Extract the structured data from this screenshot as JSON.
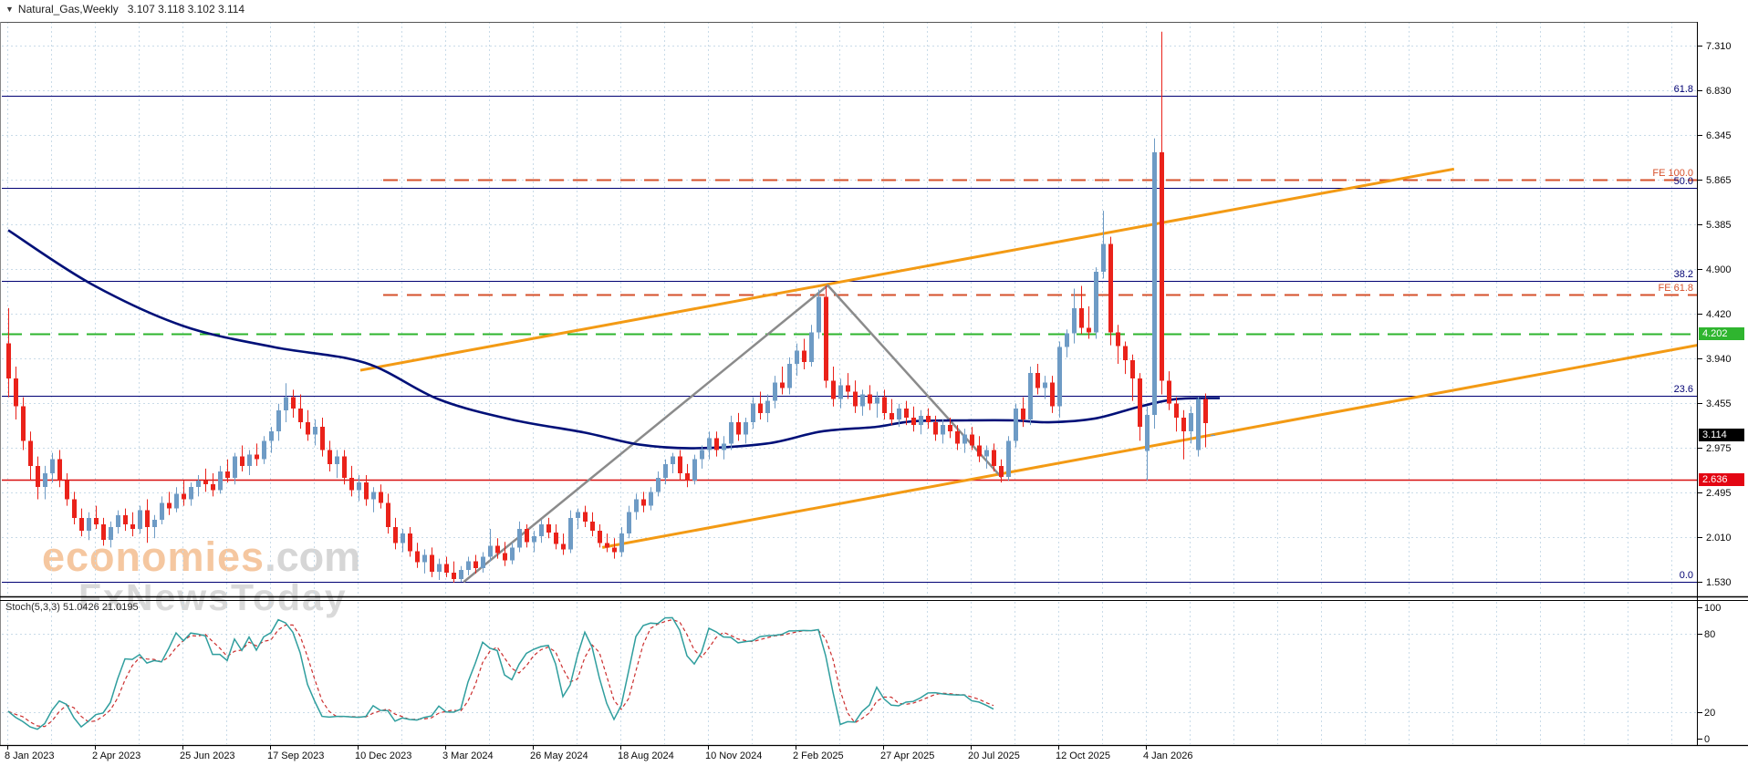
{
  "title": {
    "marker": "▼",
    "symbol": "Natural_Gas,Weekly",
    "ohlc": "3.107 3.118 3.102 3.114"
  },
  "watermark": {
    "brand": "economies",
    "brand_suffix": ".com",
    "subbrand": "FxNewsToday"
  },
  "indicator": {
    "label": "Stoch(5,3,3)",
    "values": "51.0426 21.0195"
  },
  "price_axis": {
    "ticks": [
      "7.310",
      "6.830",
      "6.345",
      "5.865",
      "5.385",
      "4.900",
      "4.420",
      "3.940",
      "3.455",
      "2.975",
      "2.495",
      "2.010",
      "1.530"
    ],
    "badges": [
      {
        "value": "4.202",
        "price": 4.202,
        "color": "#2fb52f"
      },
      {
        "value": "3.114",
        "price": 3.114,
        "color": "#000000"
      },
      {
        "value": "2.636",
        "price": 2.636,
        "color": "#e30613"
      }
    ]
  },
  "stoch_axis": {
    "ticks": [
      {
        "label": "100",
        "v": 100
      },
      {
        "label": "80",
        "v": 80
      },
      {
        "label": "20",
        "v": 20
      },
      {
        "label": "0",
        "v": 0
      }
    ]
  },
  "x_axis": {
    "dates": [
      "8 Jan 2023",
      "2 Apr 2023",
      "25 Jun 2023",
      "17 Sep 2023",
      "10 Dec 2023",
      "3 Mar 2024",
      "26 May 2024",
      "18 Aug 2024",
      "10 Nov 2024",
      "2 Feb 2025",
      "27 Apr 2025",
      "20 Jul 2025",
      "12 Oct 2025",
      "4 Jan 2026"
    ]
  },
  "colors": {
    "up": "#6e9bc5",
    "down": "#ea221a",
    "ma": "#001078",
    "trend": "#f39a14",
    "zigzag": "#8b8b8b",
    "fib": "#000073",
    "fib_expansion": "#d6502b",
    "green_line": "#2db52d",
    "red_line": "#d80f0f",
    "grid": "#c9dbe8",
    "stoch_k": "#2f9e9e",
    "stoch_d": "#cc2f2f",
    "axis_text": "#0a0a0a"
  },
  "chart_data": {
    "type": "candlestick",
    "symbol": "Natural_Gas",
    "timeframe": "Weekly",
    "title": "Natural_Gas,Weekly 3.107 3.118 3.102 3.114",
    "ylim": [
      1.2,
      7.8
    ],
    "last_price": 3.114,
    "candles_ohlc": [
      [
        4.1,
        4.48,
        3.52,
        3.72
      ],
      [
        3.72,
        3.85,
        3.28,
        3.42
      ],
      [
        3.42,
        3.52,
        2.95,
        3.05
      ],
      [
        3.05,
        3.15,
        2.62,
        2.78
      ],
      [
        2.78,
        2.88,
        2.42,
        2.55
      ],
      [
        2.55,
        2.78,
        2.42,
        2.7
      ],
      [
        2.7,
        2.92,
        2.6,
        2.85
      ],
      [
        2.85,
        2.95,
        2.55,
        2.62
      ],
      [
        2.62,
        2.7,
        2.35,
        2.42
      ],
      [
        2.42,
        2.5,
        2.15,
        2.22
      ],
      [
        2.22,
        2.32,
        2.02,
        2.08
      ],
      [
        2.08,
        2.28,
        1.98,
        2.22
      ],
      [
        2.22,
        2.35,
        2.1,
        2.15
      ],
      [
        2.15,
        2.22,
        1.92,
        1.98
      ],
      [
        1.98,
        2.18,
        1.9,
        2.12
      ],
      [
        2.12,
        2.3,
        2.05,
        2.25
      ],
      [
        2.25,
        2.32,
        2.08,
        2.15
      ],
      [
        2.15,
        2.28,
        2.02,
        2.1
      ],
      [
        2.1,
        2.35,
        2.05,
        2.3
      ],
      [
        2.3,
        2.42,
        1.95,
        2.12
      ],
      [
        2.12,
        2.25,
        2.0,
        2.2
      ],
      [
        2.2,
        2.45,
        2.15,
        2.38
      ],
      [
        2.38,
        2.5,
        2.25,
        2.32
      ],
      [
        2.32,
        2.55,
        2.28,
        2.48
      ],
      [
        2.48,
        2.62,
        2.35,
        2.42
      ],
      [
        2.42,
        2.6,
        2.35,
        2.55
      ],
      [
        2.55,
        2.68,
        2.45,
        2.62
      ],
      [
        2.62,
        2.75,
        2.5,
        2.58
      ],
      [
        2.58,
        2.7,
        2.45,
        2.52
      ],
      [
        2.52,
        2.78,
        2.48,
        2.72
      ],
      [
        2.72,
        2.85,
        2.6,
        2.65
      ],
      [
        2.65,
        2.92,
        2.58,
        2.88
      ],
      [
        2.88,
        3.0,
        2.72,
        2.78
      ],
      [
        2.78,
        2.95,
        2.68,
        2.9
      ],
      [
        2.9,
        3.02,
        2.78,
        2.85
      ],
      [
        2.85,
        3.1,
        2.8,
        3.05
      ],
      [
        3.05,
        3.2,
        2.92,
        3.15
      ],
      [
        3.15,
        3.45,
        3.05,
        3.38
      ],
      [
        3.38,
        3.67,
        3.25,
        3.52
      ],
      [
        3.52,
        3.6,
        3.3,
        3.4
      ],
      [
        3.4,
        3.55,
        3.18,
        3.25
      ],
      [
        3.25,
        3.38,
        3.05,
        3.12
      ],
      [
        3.12,
        3.28,
        3.0,
        3.2
      ],
      [
        3.2,
        3.3,
        2.88,
        2.95
      ],
      [
        2.95,
        3.05,
        2.72,
        2.8
      ],
      [
        2.8,
        2.95,
        2.65,
        2.88
      ],
      [
        2.88,
        2.95,
        2.58,
        2.65
      ],
      [
        2.65,
        2.78,
        2.45,
        2.52
      ],
      [
        2.52,
        2.68,
        2.4,
        2.6
      ],
      [
        2.6,
        2.68,
        2.35,
        2.42
      ],
      [
        2.42,
        2.55,
        2.28,
        2.5
      ],
      [
        2.5,
        2.58,
        2.32,
        2.38
      ],
      [
        2.38,
        2.48,
        2.05,
        2.12
      ],
      [
        2.12,
        2.22,
        1.88,
        1.95
      ],
      [
        1.95,
        2.1,
        1.85,
        2.05
      ],
      [
        2.05,
        2.12,
        1.8,
        1.86
      ],
      [
        1.86,
        1.95,
        1.68,
        1.74
      ],
      [
        1.74,
        1.88,
        1.62,
        1.82
      ],
      [
        1.82,
        1.9,
        1.58,
        1.64
      ],
      [
        1.64,
        1.78,
        1.55,
        1.72
      ],
      [
        1.72,
        1.8,
        1.58,
        1.63
      ],
      [
        1.63,
        1.75,
        1.52,
        1.56
      ],
      [
        1.56,
        1.7,
        1.53,
        1.66
      ],
      [
        1.66,
        1.8,
        1.6,
        1.75
      ],
      [
        1.75,
        1.82,
        1.62,
        1.68
      ],
      [
        1.68,
        1.85,
        1.63,
        1.8
      ],
      [
        1.8,
        2.1,
        1.75,
        1.92
      ],
      [
        1.92,
        2.0,
        1.78,
        1.84
      ],
      [
        1.84,
        1.96,
        1.7,
        1.76
      ],
      [
        1.76,
        1.95,
        1.72,
        1.9
      ],
      [
        1.9,
        2.18,
        1.85,
        2.1
      ],
      [
        2.1,
        2.15,
        1.9,
        1.96
      ],
      [
        1.96,
        2.08,
        1.85,
        2.02
      ],
      [
        2.02,
        2.2,
        1.95,
        2.15
      ],
      [
        2.15,
        2.22,
        2.0,
        2.06
      ],
      [
        2.06,
        2.15,
        1.88,
        1.94
      ],
      [
        1.94,
        2.05,
        1.82,
        1.88
      ],
      [
        1.88,
        2.3,
        1.84,
        2.22
      ],
      [
        2.22,
        2.32,
        2.1,
        2.28
      ],
      [
        2.28,
        2.35,
        2.12,
        2.18
      ],
      [
        2.18,
        2.28,
        2.02,
        2.08
      ],
      [
        2.08,
        2.15,
        1.9,
        1.95
      ],
      [
        1.95,
        2.05,
        1.85,
        1.9
      ],
      [
        1.9,
        2.0,
        1.78,
        1.85
      ],
      [
        1.85,
        2.12,
        1.8,
        2.05
      ],
      [
        2.05,
        2.35,
        2.0,
        2.28
      ],
      [
        2.28,
        2.48,
        2.2,
        2.42
      ],
      [
        2.42,
        2.5,
        2.28,
        2.35
      ],
      [
        2.35,
        2.55,
        2.3,
        2.5
      ],
      [
        2.5,
        2.72,
        2.45,
        2.65
      ],
      [
        2.65,
        2.85,
        2.58,
        2.8
      ],
      [
        2.8,
        2.92,
        2.7,
        2.88
      ],
      [
        2.88,
        2.95,
        2.62,
        2.7
      ],
      [
        2.7,
        2.8,
        2.55,
        2.62
      ],
      [
        2.62,
        2.9,
        2.58,
        2.85
      ],
      [
        2.85,
        3.0,
        2.75,
        2.95
      ],
      [
        2.95,
        3.15,
        2.85,
        3.08
      ],
      [
        3.08,
        3.15,
        2.88,
        2.95
      ],
      [
        2.95,
        3.1,
        2.85,
        3.02
      ],
      [
        3.02,
        3.32,
        2.95,
        3.25
      ],
      [
        3.25,
        3.35,
        3.05,
        3.12
      ],
      [
        3.12,
        3.3,
        3.02,
        3.25
      ],
      [
        3.25,
        3.52,
        3.18,
        3.45
      ],
      [
        3.45,
        3.58,
        3.28,
        3.35
      ],
      [
        3.35,
        3.55,
        3.25,
        3.48
      ],
      [
        3.48,
        3.75,
        3.4,
        3.68
      ],
      [
        3.68,
        3.85,
        3.55,
        3.62
      ],
      [
        3.62,
        3.95,
        3.55,
        3.88
      ],
      [
        3.88,
        4.1,
        3.75,
        4.02
      ],
      [
        4.02,
        4.15,
        3.82,
        3.9
      ],
      [
        3.9,
        4.3,
        3.85,
        4.22
      ],
      [
        4.22,
        4.68,
        4.15,
        4.6
      ],
      [
        4.6,
        4.72,
        3.62,
        3.7
      ],
      [
        3.7,
        3.85,
        3.42,
        3.5
      ],
      [
        3.5,
        3.72,
        3.4,
        3.65
      ],
      [
        3.65,
        3.78,
        3.5,
        3.58
      ],
      [
        3.58,
        3.7,
        3.35,
        3.42
      ],
      [
        3.42,
        3.6,
        3.32,
        3.55
      ],
      [
        3.55,
        3.65,
        3.38,
        3.45
      ],
      [
        3.45,
        3.58,
        3.3,
        3.52
      ],
      [
        3.52,
        3.6,
        3.28,
        3.35
      ],
      [
        3.35,
        3.5,
        3.22,
        3.28
      ],
      [
        3.28,
        3.45,
        3.2,
        3.4
      ],
      [
        3.4,
        3.48,
        3.22,
        3.3
      ],
      [
        3.3,
        3.42,
        3.15,
        3.22
      ],
      [
        3.22,
        3.38,
        3.12,
        3.32
      ],
      [
        3.32,
        3.4,
        3.18,
        3.25
      ],
      [
        3.25,
        3.32,
        3.05,
        3.12
      ],
      [
        3.12,
        3.28,
        3.02,
        3.22
      ],
      [
        3.22,
        3.3,
        3.08,
        3.15
      ],
      [
        3.15,
        3.22,
        2.95,
        3.02
      ],
      [
        3.02,
        3.18,
        2.92,
        3.12
      ],
      [
        3.12,
        3.2,
        2.95,
        3.0
      ],
      [
        3.0,
        3.1,
        2.82,
        2.88
      ],
      [
        2.88,
        3.0,
        2.75,
        2.95
      ],
      [
        2.95,
        3.02,
        2.72,
        2.78
      ],
      [
        2.78,
        2.85,
        2.6,
        2.66
      ],
      [
        2.66,
        3.1,
        2.62,
        3.05
      ],
      [
        3.05,
        3.45,
        2.98,
        3.4
      ],
      [
        3.4,
        3.52,
        3.2,
        3.28
      ],
      [
        3.28,
        3.85,
        3.22,
        3.78
      ],
      [
        3.78,
        3.88,
        3.55,
        3.62
      ],
      [
        3.62,
        3.75,
        3.5,
        3.68
      ],
      [
        3.68,
        3.75,
        3.35,
        3.42
      ],
      [
        3.42,
        4.12,
        3.3,
        4.06
      ],
      [
        4.06,
        4.25,
        3.95,
        4.21
      ],
      [
        4.21,
        4.69,
        4.1,
        4.48
      ],
      [
        4.48,
        4.72,
        4.2,
        4.27
      ],
      [
        4.27,
        4.5,
        4.15,
        4.22
      ],
      [
        4.22,
        4.92,
        4.15,
        4.87
      ],
      [
        4.87,
        5.53,
        4.8,
        5.17
      ],
      [
        5.17,
        5.25,
        4.08,
        4.22
      ],
      [
        4.22,
        4.3,
        3.88,
        4.07
      ],
      [
        4.07,
        4.12,
        3.77,
        3.92
      ],
      [
        3.92,
        3.98,
        3.48,
        3.72
      ],
      [
        3.72,
        3.78,
        3.05,
        3.2
      ],
      [
        2.94,
        3.42,
        2.62,
        3.33
      ],
      [
        3.33,
        6.31,
        3.18,
        6.16
      ],
      [
        6.16,
        7.46,
        3.55,
        3.7
      ],
      [
        3.7,
        3.8,
        3.38,
        3.45
      ],
      [
        3.45,
        3.52,
        3.15,
        3.3
      ],
      [
        3.3,
        3.38,
        2.85,
        3.15
      ],
      [
        3.15,
        3.42,
        3.02,
        3.35
      ],
      [
        2.95,
        3.52,
        2.88,
        3.5
      ],
      [
        3.5,
        3.56,
        2.98,
        3.24
      ],
      [
        3.107,
        3.118,
        3.102,
        3.114
      ]
    ],
    "fib_retracement": [
      {
        "label": "61.8",
        "price": 6.77
      },
      {
        "label": "50.0",
        "price": 5.777
      },
      {
        "label": "38.2",
        "price": 4.774
      },
      {
        "label": "23.6",
        "price": 3.535
      },
      {
        "label": "0.0",
        "price": 1.529
      }
    ],
    "fib_expansion": [
      {
        "label": "FE 100.0",
        "price": 5.863
      },
      {
        "label": "FE 61.8",
        "price": 4.626
      }
    ],
    "horizontal_lines": [
      {
        "price": 4.202,
        "style": "dashed",
        "color_key": "green_line"
      },
      {
        "price": 2.636,
        "style": "solid",
        "color_key": "red_line"
      }
    ],
    "moving_average_wp": [
      [
        0,
        5.32
      ],
      [
        11.4,
        4.74
      ],
      [
        23.9,
        4.29
      ],
      [
        36.4,
        4.06
      ],
      [
        48.9,
        3.89
      ],
      [
        58.9,
        3.5
      ],
      [
        68.9,
        3.28
      ],
      [
        78.9,
        3.14
      ],
      [
        86.4,
        3.01
      ],
      [
        93.9,
        2.97
      ],
      [
        103.9,
        3.02
      ],
      [
        111.4,
        3.15
      ],
      [
        118.9,
        3.2
      ],
      [
        123.9,
        3.26
      ],
      [
        131.4,
        3.27
      ],
      [
        137.6,
        3.27
      ],
      [
        142.6,
        3.25
      ],
      [
        148.9,
        3.29
      ],
      [
        155.1,
        3.42
      ],
      [
        160.1,
        3.5
      ],
      [
        166,
        3.51
      ]
    ],
    "zigzag_wp": [
      [
        62.4,
        1.528
      ],
      [
        112.3,
        4.725
      ],
      [
        136.1,
        2.655
      ]
    ],
    "trendlines_wp": [
      {
        "from": [
          48.25,
          3.81
        ],
        "to": [
          198.1,
          5.98
        ]
      },
      {
        "from": [
          81.4,
          1.9
        ],
        "to": [
          231.4,
          4.08
        ]
      }
    ],
    "stochastic": {
      "params": [
        5,
        3,
        3
      ],
      "scale": [
        0,
        100
      ],
      "levels": [
        20,
        80
      ],
      "drawn_through_index": 135
    }
  }
}
